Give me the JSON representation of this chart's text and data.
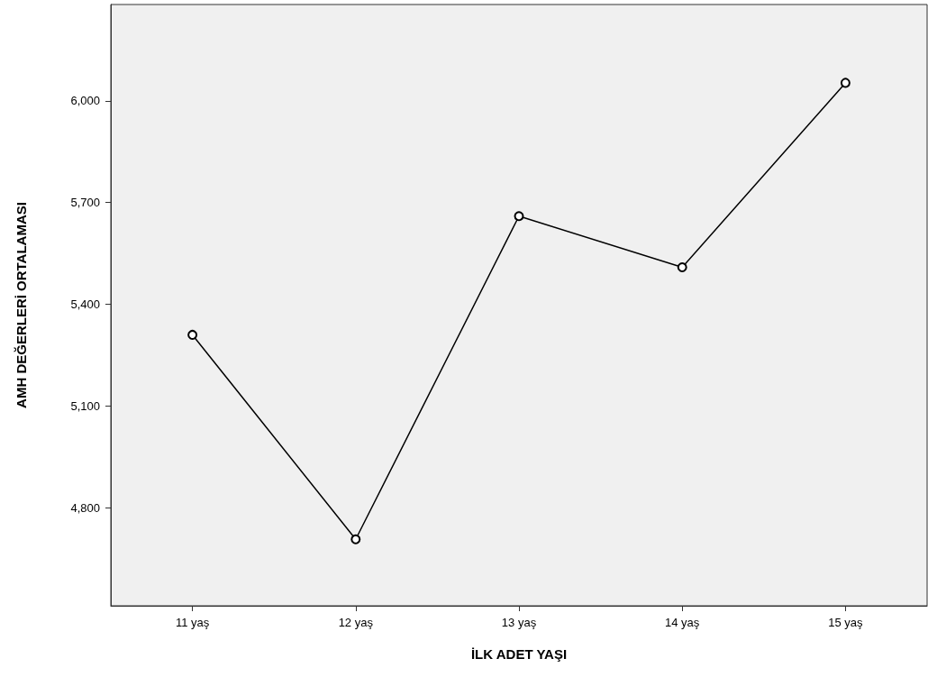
{
  "chart_data": {
    "type": "line",
    "xlabel": "İLK ADET YAŞI",
    "ylabel": "AMH DEĞERLERİ ORTALAMASI",
    "categories": [
      "11 yaş",
      "12 yaş",
      "13 yaş",
      "14 yaş",
      "15 yaş"
    ],
    "series": [
      {
        "color": "#000000",
        "values": [
          5310,
          4707,
          5660,
          5509,
          6053
        ]
      }
    ],
    "ylim": [
      4511,
      6284
    ],
    "yticks": [
      {
        "value": 4800,
        "label": "4,800"
      },
      {
        "value": 5100,
        "label": "5,100"
      },
      {
        "value": 5400,
        "label": "5,400"
      },
      {
        "value": 5700,
        "label": "5,700"
      },
      {
        "value": 6000,
        "label": "6,000"
      }
    ],
    "grid": false,
    "marker": "circle",
    "line_style": "solid"
  }
}
